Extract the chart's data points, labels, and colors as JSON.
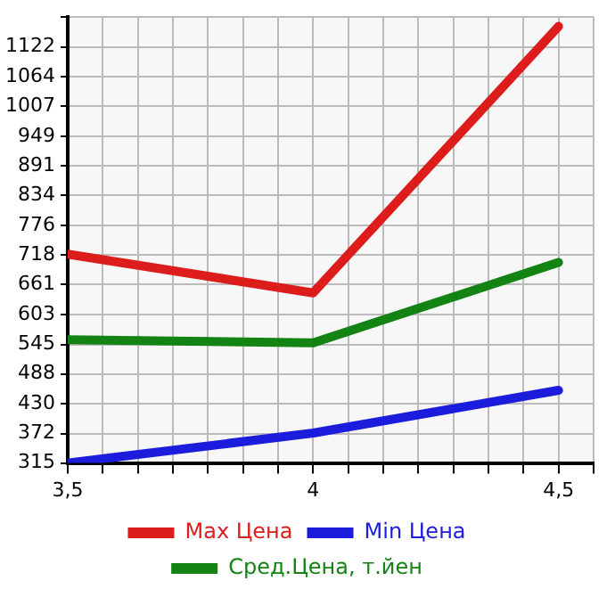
{
  "chart_data": {
    "type": "line",
    "x": [
      3.5,
      4,
      4.5
    ],
    "series": [
      {
        "name": "Max Цена",
        "color": "#dd1c1c",
        "values": [
          720,
          645,
          1162
        ]
      },
      {
        "name": "Min Цена",
        "color": "#1c1cdd",
        "values": [
          315,
          373,
          456
        ]
      },
      {
        "name": "Сред.Цена, т.йен",
        "color": "#138413",
        "values": [
          554,
          548,
          704
        ]
      }
    ],
    "xlim": [
      3.5,
      4.5714
    ],
    "xticks": [
      {
        "value": 3.5,
        "label": "3,5"
      },
      {
        "value": 3.5714,
        "label": null
      },
      {
        "value": 3.6429,
        "label": null
      },
      {
        "value": 3.7143,
        "label": null
      },
      {
        "value": 3.7857,
        "label": null
      },
      {
        "value": 3.8571,
        "label": null
      },
      {
        "value": 3.9286,
        "label": null
      },
      {
        "value": 4,
        "label": "4"
      },
      {
        "value": 4.0714,
        "label": null
      },
      {
        "value": 4.1429,
        "label": null
      },
      {
        "value": 4.2143,
        "label": null
      },
      {
        "value": 4.2857,
        "label": null
      },
      {
        "value": 4.3571,
        "label": null
      },
      {
        "value": 4.4286,
        "label": null
      },
      {
        "value": 4.5,
        "label": "4,5"
      },
      {
        "value": 4.5714,
        "label": null
      }
    ],
    "ylim": [
      315,
      1180
    ],
    "yticks": [
      315,
      372,
      430,
      488,
      545,
      603,
      661,
      718,
      776,
      834,
      891,
      949,
      1007,
      1064,
      1122,
      {
        "value": 1180,
        "label": null
      }
    ],
    "grid": true,
    "legend": "bottom",
    "marker": "none",
    "line_style": "solid"
  }
}
